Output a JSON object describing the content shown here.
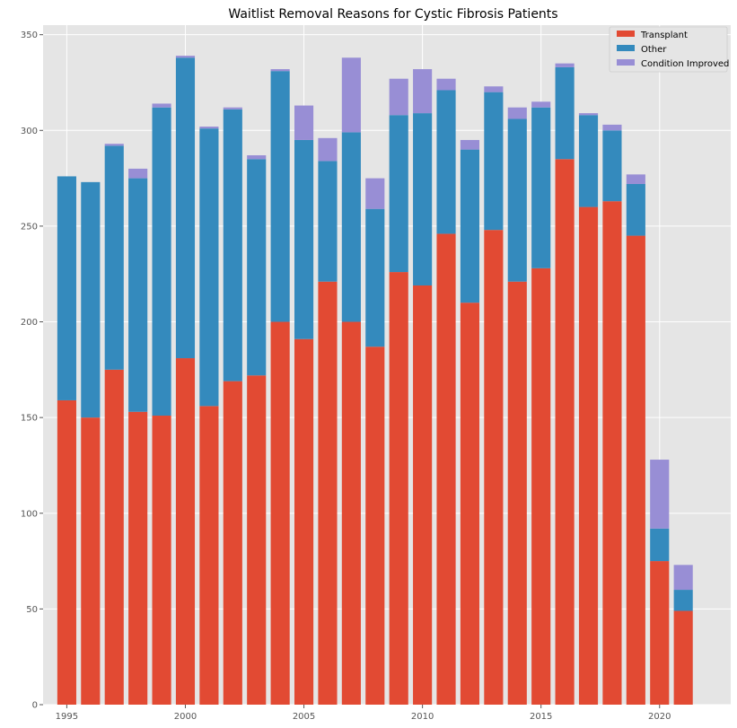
{
  "chart_data": {
    "type": "bar",
    "stacked": true,
    "title": "Waitlist Removal Reasons for Cystic Fibrosis Patients",
    "xlabel": "",
    "ylabel": "",
    "x": [
      1995,
      1996,
      1997,
      1998,
      1999,
      2000,
      2001,
      2002,
      2003,
      2004,
      2005,
      2006,
      2007,
      2008,
      2009,
      2010,
      2011,
      2012,
      2013,
      2014,
      2015,
      2016,
      2017,
      2018,
      2019,
      2020,
      2021
    ],
    "series": [
      {
        "name": "Transplant",
        "color": "#e24a33",
        "values": [
          159,
          150,
          175,
          153,
          151,
          181,
          156,
          169,
          172,
          200,
          191,
          221,
          200,
          187,
          226,
          219,
          246,
          210,
          248,
          221,
          228,
          285,
          260,
          263,
          245,
          75,
          49
        ]
      },
      {
        "name": "Other",
        "color": "#348abd",
        "values": [
          117,
          123,
          117,
          122,
          161,
          157,
          145,
          142,
          113,
          131,
          104,
          63,
          99,
          72,
          82,
          90,
          75,
          80,
          72,
          85,
          84,
          48,
          48,
          37,
          27,
          17,
          11
        ]
      },
      {
        "name": "Condition Improved",
        "color": "#988ed5",
        "values": [
          0,
          0,
          1,
          5,
          2,
          1,
          1,
          1,
          2,
          1,
          18,
          12,
          39,
          16,
          19,
          23,
          6,
          5,
          3,
          6,
          3,
          2,
          1,
          3,
          5,
          36,
          13
        ]
      }
    ],
    "xticks": [
      "1995",
      "2000",
      "2005",
      "2010",
      "2015",
      "2020"
    ],
    "yticks": [
      "0",
      "50",
      "100",
      "150",
      "200",
      "250",
      "300",
      "350"
    ],
    "xlim": [
      1994,
      2023
    ],
    "ylim": [
      0,
      355
    ],
    "grid": true,
    "legend_position": "top-right",
    "background": "#e5e5e5",
    "grid_color": "#ffffff"
  }
}
